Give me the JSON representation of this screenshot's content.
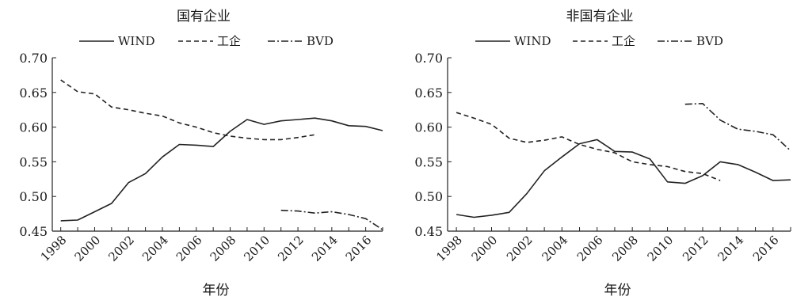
{
  "chart_data": [
    {
      "type": "line",
      "title": "国有企业",
      "xlabel": "年份",
      "ylabel": "",
      "xlim": [
        1997.5,
        2017
      ],
      "ylim": [
        0.45,
        0.7
      ],
      "yticks": [
        "0.70",
        "0.65",
        "0.60",
        "0.55",
        "0.50",
        "0.45"
      ],
      "xticks": [
        "1998",
        "2000",
        "2002",
        "2004",
        "2006",
        "2008",
        "2010",
        "2012",
        "2014",
        "2016"
      ],
      "legend_position": "top",
      "series": [
        {
          "name": "WIND",
          "style": "solid",
          "x": [
            1998,
            1999,
            2000,
            2001,
            2002,
            2003,
            2004,
            2005,
            2006,
            2007,
            2008,
            2009,
            2010,
            2011,
            2012,
            2013,
            2014,
            2015,
            2016,
            2017
          ],
          "values": [
            0.465,
            0.466,
            0.478,
            0.49,
            0.52,
            0.533,
            0.557,
            0.575,
            0.574,
            0.572,
            0.594,
            0.611,
            0.604,
            0.609,
            0.611,
            0.613,
            0.609,
            0.602,
            0.601,
            0.595
          ]
        },
        {
          "name": "工企",
          "style": "dashed",
          "x": [
            1998,
            1999,
            2000,
            2001,
            2002,
            2003,
            2004,
            2005,
            2006,
            2007,
            2008,
            2009,
            2010,
            2011,
            2012,
            2013
          ],
          "values": [
            0.668,
            0.651,
            0.648,
            0.629,
            0.625,
            0.62,
            0.616,
            0.606,
            0.6,
            0.592,
            0.587,
            0.584,
            0.582,
            0.582,
            0.585,
            0.589
          ]
        },
        {
          "name": "BVD",
          "style": "dashdot",
          "x": [
            2011,
            2012,
            2013,
            2014,
            2015,
            2016,
            2017
          ],
          "values": [
            0.48,
            0.479,
            0.476,
            0.478,
            0.474,
            0.468,
            0.452
          ]
        }
      ]
    },
    {
      "type": "line",
      "title": "非国有企业",
      "xlabel": "年份",
      "ylabel": "",
      "xlim": [
        1997.5,
        2017
      ],
      "ylim": [
        0.45,
        0.7
      ],
      "yticks": [
        "0.70",
        "0.65",
        "0.60",
        "0.55",
        "0.50",
        "0.45"
      ],
      "xticks": [
        "1998",
        "2000",
        "2002",
        "2004",
        "2006",
        "2008",
        "2010",
        "2012",
        "2014",
        "2016"
      ],
      "legend_position": "top",
      "series": [
        {
          "name": "WIND",
          "style": "solid",
          "x": [
            1998,
            1999,
            2000,
            2001,
            2002,
            2003,
            2004,
            2005,
            2006,
            2007,
            2008,
            2009,
            2010,
            2011,
            2012,
            2013,
            2014,
            2015,
            2016,
            2017
          ],
          "values": [
            0.474,
            0.47,
            0.473,
            0.477,
            0.504,
            0.537,
            0.557,
            0.576,
            0.582,
            0.565,
            0.564,
            0.554,
            0.521,
            0.519,
            0.53,
            0.55,
            0.546,
            0.535,
            0.523,
            0.524
          ]
        },
        {
          "name": "工企",
          "style": "dashed",
          "x": [
            1998,
            1999,
            2000,
            2001,
            2002,
            2003,
            2004,
            2005,
            2006,
            2007,
            2008,
            2009,
            2010,
            2011,
            2012,
            2013
          ],
          "values": [
            0.621,
            0.613,
            0.604,
            0.584,
            0.578,
            0.581,
            0.586,
            0.575,
            0.568,
            0.563,
            0.55,
            0.546,
            0.543,
            0.536,
            0.533,
            0.523
          ]
        },
        {
          "name": "BVD",
          "style": "dashdot",
          "x": [
            2011,
            2012,
            2013,
            2014,
            2015,
            2016,
            2017
          ],
          "values": [
            0.633,
            0.634,
            0.61,
            0.597,
            0.594,
            0.589,
            0.566
          ]
        }
      ]
    }
  ]
}
